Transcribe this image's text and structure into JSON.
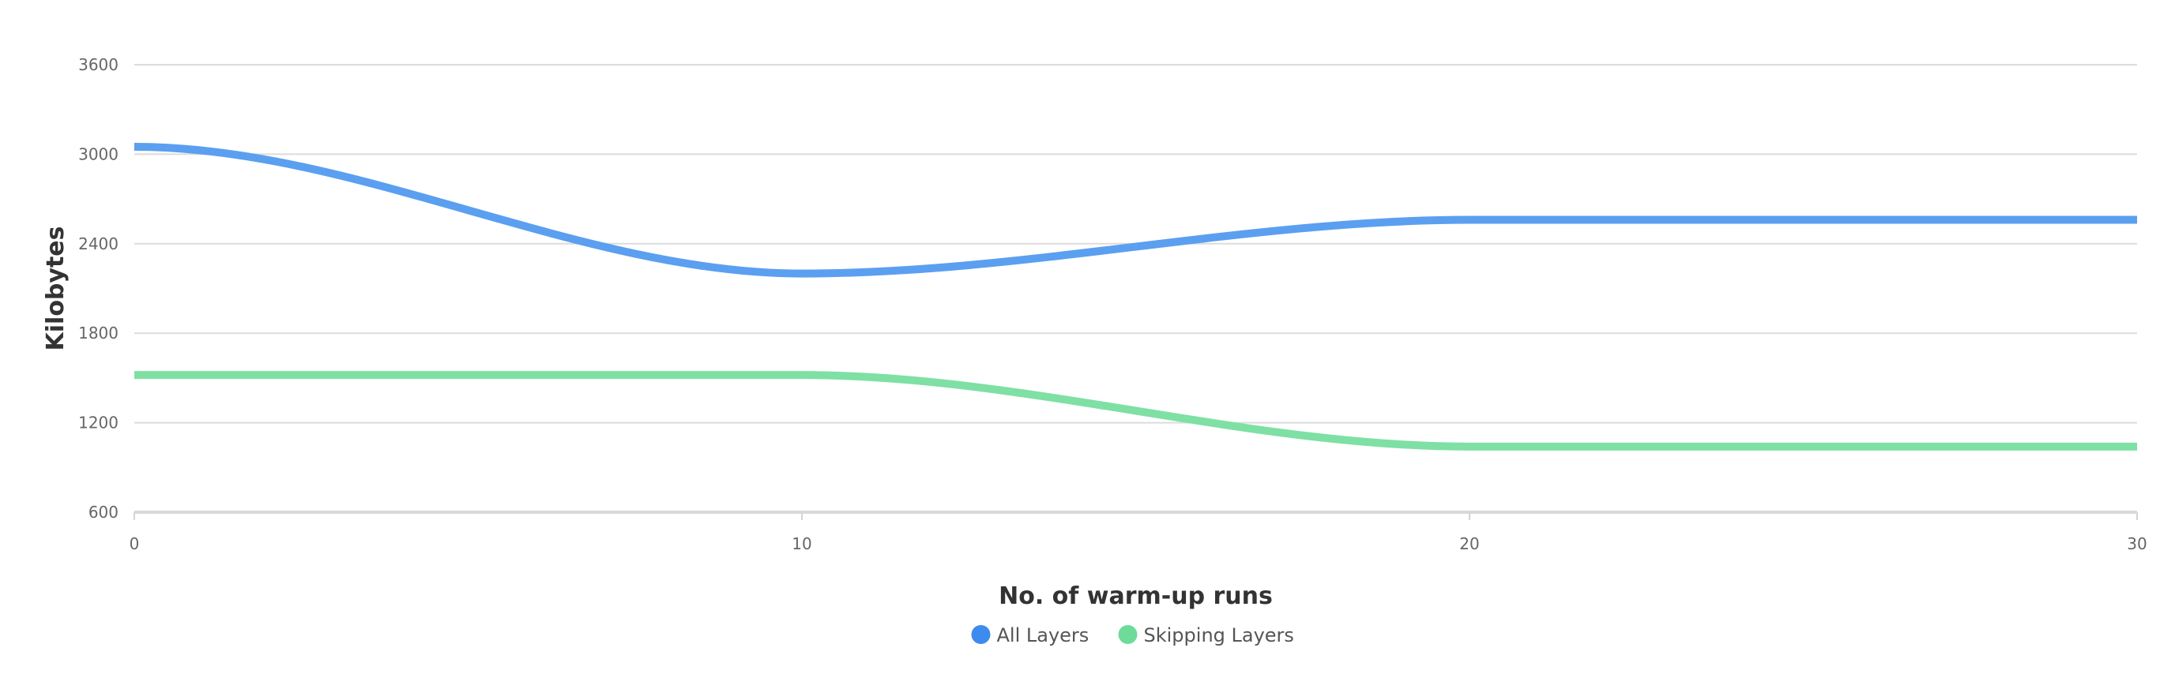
{
  "chart_data": {
    "type": "line",
    "title": "",
    "xlabel": "No. of warm-up runs",
    "ylabel": "Kilobytes",
    "x": [
      0,
      10,
      20,
      30
    ],
    "xlim": [
      0,
      30
    ],
    "ylim": [
      600,
      3600
    ],
    "x_ticks": [
      0,
      10,
      20,
      30
    ],
    "y_ticks": [
      600,
      1200,
      1800,
      2400,
      3000,
      3600
    ],
    "grid": true,
    "legend_position": "bottom",
    "curve": "smooth",
    "series": [
      {
        "name": "All Layers",
        "values": [
          3050,
          2200,
          2560,
          2560
        ],
        "color": "#5b9ff0",
        "legend_color": "#3d8bef"
      },
      {
        "name": "Skipping Layers",
        "values": [
          1520,
          1520,
          1040,
          1040
        ],
        "color": "#7ee0a4",
        "legend_color": "#6edb9a"
      }
    ]
  }
}
